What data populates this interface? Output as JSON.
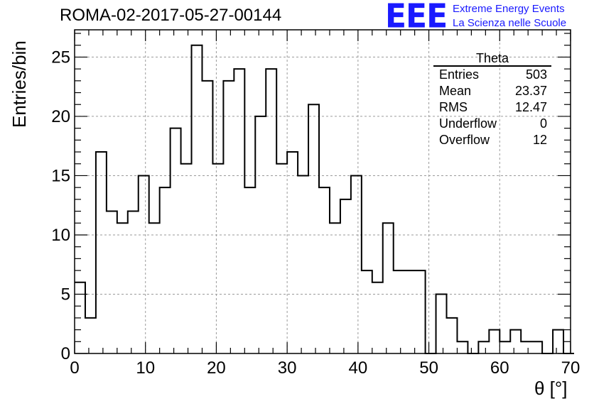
{
  "header": {
    "run_title": "ROMA-02-2017-05-27-00144",
    "logo_letters": "EEE",
    "logo_line1": "Extreme Energy Events",
    "logo_line2": "La Scienza nelle Scuole",
    "logo_color": "#1a1aff"
  },
  "stats_box": {
    "title": "Theta",
    "rows": [
      {
        "label": "Entries",
        "value": "503"
      },
      {
        "label": "Mean",
        "value": "23.37"
      },
      {
        "label": "RMS",
        "value": "12.47"
      },
      {
        "label": "Underflow",
        "value": "0"
      },
      {
        "label": "Overflow",
        "value": "12"
      }
    ]
  },
  "chart_data": {
    "type": "histogram",
    "xlabel": "θ [°]",
    "ylabel": "Entries/bin",
    "xlim": [
      0,
      70
    ],
    "ylim": [
      0,
      27.3
    ],
    "x_ticks": [
      0,
      10,
      20,
      30,
      40,
      50,
      60,
      70
    ],
    "y_ticks": [
      0,
      5,
      10,
      15,
      20,
      25
    ],
    "grid": true,
    "bin_width": 1.5,
    "bin_start": 0,
    "values": [
      6,
      3,
      17,
      12,
      11,
      12,
      15,
      11,
      14,
      19,
      16,
      26,
      23,
      16,
      23,
      24,
      14,
      20,
      24,
      16,
      17,
      15,
      21,
      14,
      11,
      13,
      15,
      7,
      6,
      11,
      7,
      7,
      7,
      0,
      5,
      3,
      1,
      0,
      1,
      2,
      1,
      2,
      1,
      1,
      0,
      2,
      0
    ],
    "line_color": "#000000"
  }
}
